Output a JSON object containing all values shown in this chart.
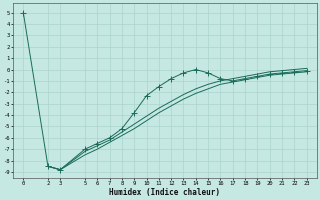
{
  "xlabel": "Humidex (Indice chaleur)",
  "bg_color": "#c5e8e2",
  "grid_color": "#aad4cc",
  "line_color": "#1a6b5a",
  "xlim": [
    -0.8,
    23.8
  ],
  "ylim": [
    -9.5,
    5.8
  ],
  "yticks": [
    5,
    4,
    3,
    2,
    1,
    0,
    -1,
    -2,
    -3,
    -4,
    -5,
    -6,
    -7,
    -8,
    -9
  ],
  "xticks": [
    0,
    2,
    3,
    5,
    6,
    7,
    8,
    9,
    10,
    11,
    12,
    13,
    14,
    15,
    16,
    17,
    18,
    19,
    20,
    21,
    22,
    23
  ],
  "line1_x": [
    0,
    2,
    3,
    5,
    6,
    7,
    8,
    9,
    10,
    11,
    12,
    13,
    14,
    15,
    16,
    17,
    18,
    19,
    20,
    21,
    22,
    23
  ],
  "line1_y": [
    5.0,
    -8.5,
    -8.8,
    -7.0,
    -6.5,
    -6.0,
    -5.2,
    -3.8,
    -2.3,
    -1.5,
    -0.8,
    -0.3,
    0.0,
    -0.3,
    -0.8,
    -1.0,
    -0.8,
    -0.6,
    -0.4,
    -0.3,
    -0.2,
    -0.1
  ],
  "line2_x": [
    2,
    3,
    5,
    6,
    7,
    8,
    9,
    10,
    11,
    12,
    13,
    14,
    15,
    16,
    17,
    18,
    19,
    20,
    21,
    22,
    23
  ],
  "line2_y": [
    -8.5,
    -8.8,
    -7.2,
    -6.7,
    -6.2,
    -5.5,
    -4.8,
    -4.1,
    -3.4,
    -2.8,
    -2.2,
    -1.7,
    -1.3,
    -1.0,
    -0.8,
    -0.6,
    -0.4,
    -0.2,
    -0.1,
    0.0,
    0.1
  ],
  "line3_x": [
    2,
    3,
    5,
    6,
    7,
    8,
    9,
    10,
    11,
    12,
    13,
    14,
    15,
    16,
    17,
    18,
    19,
    20,
    21,
    22,
    23
  ],
  "line3_y": [
    -8.5,
    -8.8,
    -7.5,
    -7.0,
    -6.4,
    -5.8,
    -5.2,
    -4.5,
    -3.8,
    -3.2,
    -2.6,
    -2.1,
    -1.7,
    -1.3,
    -1.1,
    -0.9,
    -0.7,
    -0.5,
    -0.4,
    -0.3,
    -0.2
  ]
}
